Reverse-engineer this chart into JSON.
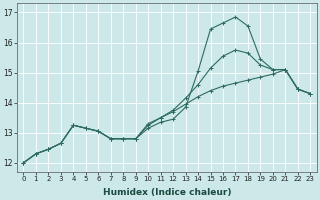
{
  "xlabel": "Humidex (Indice chaleur)",
  "ylabel": "",
  "background_color": "#cde8e8",
  "grid_color": "#ffffff",
  "line_color": "#2d6b60",
  "xlim": [
    -0.5,
    23.5
  ],
  "ylim": [
    11.7,
    17.3
  ],
  "yticks": [
    12,
    13,
    14,
    15,
    16,
    17
  ],
  "xticks": [
    0,
    1,
    2,
    3,
    4,
    5,
    6,
    7,
    8,
    9,
    10,
    11,
    12,
    13,
    14,
    15,
    16,
    17,
    18,
    19,
    20,
    21,
    22,
    23
  ],
  "line1_x": [
    0,
    1,
    2,
    3,
    4,
    5,
    6,
    7,
    8,
    9,
    10,
    11,
    12,
    13,
    14,
    15,
    16,
    17,
    18,
    19,
    20,
    21,
    22,
    23
  ],
  "line1_y": [
    12.0,
    12.3,
    12.45,
    12.65,
    13.25,
    13.15,
    13.05,
    12.8,
    12.8,
    12.8,
    13.15,
    13.35,
    13.45,
    13.85,
    15.05,
    16.45,
    16.65,
    16.85,
    16.55,
    15.45,
    15.1,
    15.1,
    14.45,
    14.3
  ],
  "line2_x": [
    0,
    1,
    2,
    3,
    4,
    5,
    6,
    7,
    8,
    9,
    10,
    11,
    12,
    13,
    14,
    15,
    16,
    17,
    18,
    19,
    20,
    21,
    22,
    23
  ],
  "line2_y": [
    12.0,
    12.3,
    12.45,
    12.65,
    13.25,
    13.15,
    13.05,
    12.8,
    12.8,
    12.8,
    13.25,
    13.5,
    13.75,
    14.15,
    14.6,
    15.15,
    15.55,
    15.75,
    15.65,
    15.25,
    15.1,
    15.1,
    14.45,
    14.3
  ],
  "line3_x": [
    0,
    1,
    2,
    3,
    4,
    5,
    6,
    7,
    8,
    9,
    10,
    11,
    12,
    13,
    14,
    15,
    16,
    17,
    18,
    19,
    20,
    21,
    22,
    23
  ],
  "line3_y": [
    12.0,
    12.3,
    12.45,
    12.65,
    13.25,
    13.15,
    13.05,
    12.8,
    12.8,
    12.8,
    13.3,
    13.5,
    13.7,
    13.95,
    14.2,
    14.4,
    14.55,
    14.65,
    14.75,
    14.85,
    14.95,
    15.1,
    14.45,
    14.3
  ],
  "marker": "+",
  "markersize": 3,
  "markeredgewidth": 0.7,
  "linewidth": 0.8,
  "xlabel_fontsize": 6.5,
  "xlabel_color": "#1a4a40",
  "tick_fontsize": 5,
  "tick_color": "#222222"
}
